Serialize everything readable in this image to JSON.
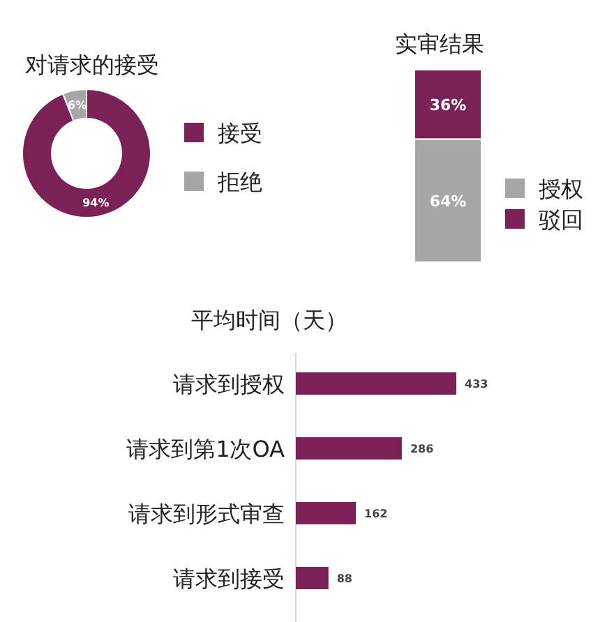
{
  "chart_data": [
    {
      "type": "donut",
      "title": "对请求的接受",
      "categories": [
        "接受",
        "拒绝"
      ],
      "values": [
        94,
        6
      ],
      "colors": [
        "#7b2157",
        "#a6a6a6"
      ],
      "value_labels": [
        "94%",
        "6%"
      ],
      "legend": "right"
    },
    {
      "type": "bar",
      "title": "实审结果",
      "categories": [
        null
      ],
      "stacked": true,
      "legend": "right",
      "series": [
        {
          "name": "授权",
          "color": "#a6a6a6",
          "values": [
            64
          ],
          "value_labels": [
            "64%"
          ]
        },
        {
          "name": "驳回",
          "color": "#7b2157",
          "values": [
            36
          ],
          "value_labels": [
            "36%"
          ]
        }
      ]
    },
    {
      "type": "bar",
      "title": "平均时间（天）",
      "orientation": "horizontal",
      "categories": [
        "请求到授权",
        "请求到第1次OA",
        "请求到形式审查",
        "请求到接受"
      ],
      "values": [
        433,
        286,
        162,
        88
      ],
      "color": "#7b2157",
      "data_labels": true
    }
  ]
}
